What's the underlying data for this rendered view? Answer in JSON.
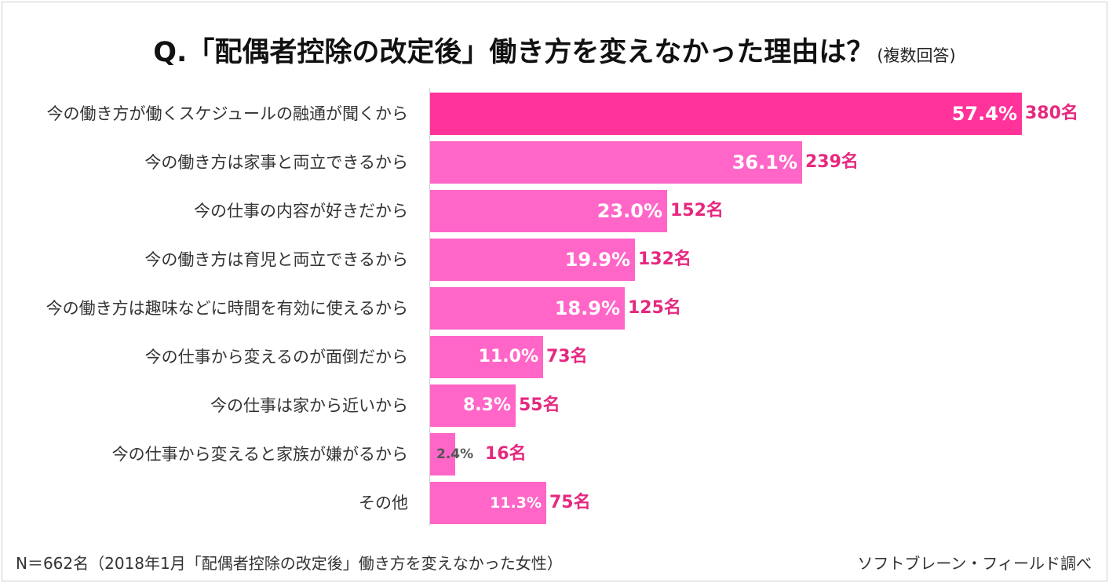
{
  "title": {
    "main": "Q.「配偶者控除の改定後」働き方を変えなかった理由は？",
    "sub": "(複数回答)"
  },
  "footnote": "N＝662名（2018年1月「配偶者控除の改定後」働き方を変えなかった女性）",
  "source": "ソフトブレーン・フィールド調べ",
  "chart_data": {
    "type": "bar",
    "orientation": "horizontal",
    "title": "Q.「配偶者控除の改定後」働き方を変えなかった理由は？(複数回答)",
    "categories": [
      "今の働き方が働くスケジュールの融通が聞くから",
      "今の働き方は家事と両立できるから",
      "今の仕事の内容が好きだから",
      "今の働き方は育児と両立できるから",
      "今の働き方は趣味などに時間を有効に使えるから",
      "今の仕事から変えるのが面倒だから",
      "今の仕事は家から近いから",
      "今の仕事から変えると家族が嫌がるから",
      "その他"
    ],
    "values": [
      57.4,
      36.1,
      23.0,
      19.9,
      18.9,
      11.0,
      8.3,
      2.4,
      11.3
    ],
    "percent_labels": [
      "57.4%",
      "36.1%",
      "23.0%",
      "19.9%",
      "18.9%",
      "11.0%",
      "8.3%",
      "2.4%",
      "11.3%"
    ],
    "count_labels": [
      "380名",
      "239名",
      "152名",
      "132名",
      "125名",
      "73名",
      "55名",
      "16名",
      "75名"
    ],
    "xlim": [
      0,
      57.4
    ],
    "grid": false,
    "colors": {
      "top_bar": "#ff3399",
      "bar": "#ff66c7",
      "count_text": "#e6287f",
      "percent_text": "#ffffff",
      "small_percent_text": "#555555"
    }
  }
}
